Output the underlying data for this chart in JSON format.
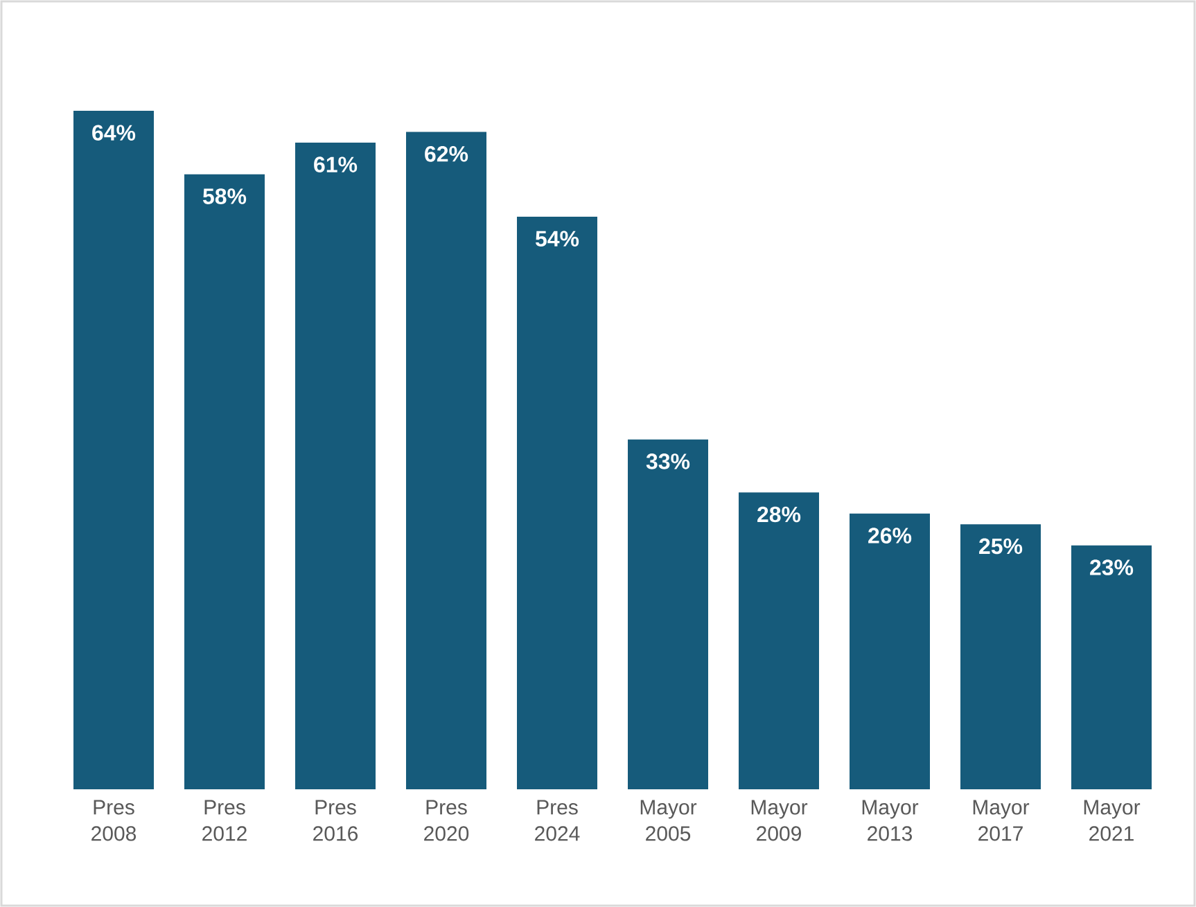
{
  "chart_data": {
    "type": "bar",
    "categories": [
      "Pres 2008",
      "Pres 2012",
      "Pres 2016",
      "Pres 2020",
      "Pres 2024",
      "Mayor 2005",
      "Mayor 2009",
      "Mayor 2013",
      "Mayor 2017",
      "Mayor 2021"
    ],
    "values": [
      64,
      58,
      61,
      62,
      54,
      33,
      28,
      26,
      25,
      23
    ],
    "value_labels": [
      "64%",
      "58%",
      "61%",
      "62%",
      "54%",
      "33%",
      "28%",
      "26%",
      "25%",
      "23%"
    ],
    "color": "#165b7b"
  }
}
